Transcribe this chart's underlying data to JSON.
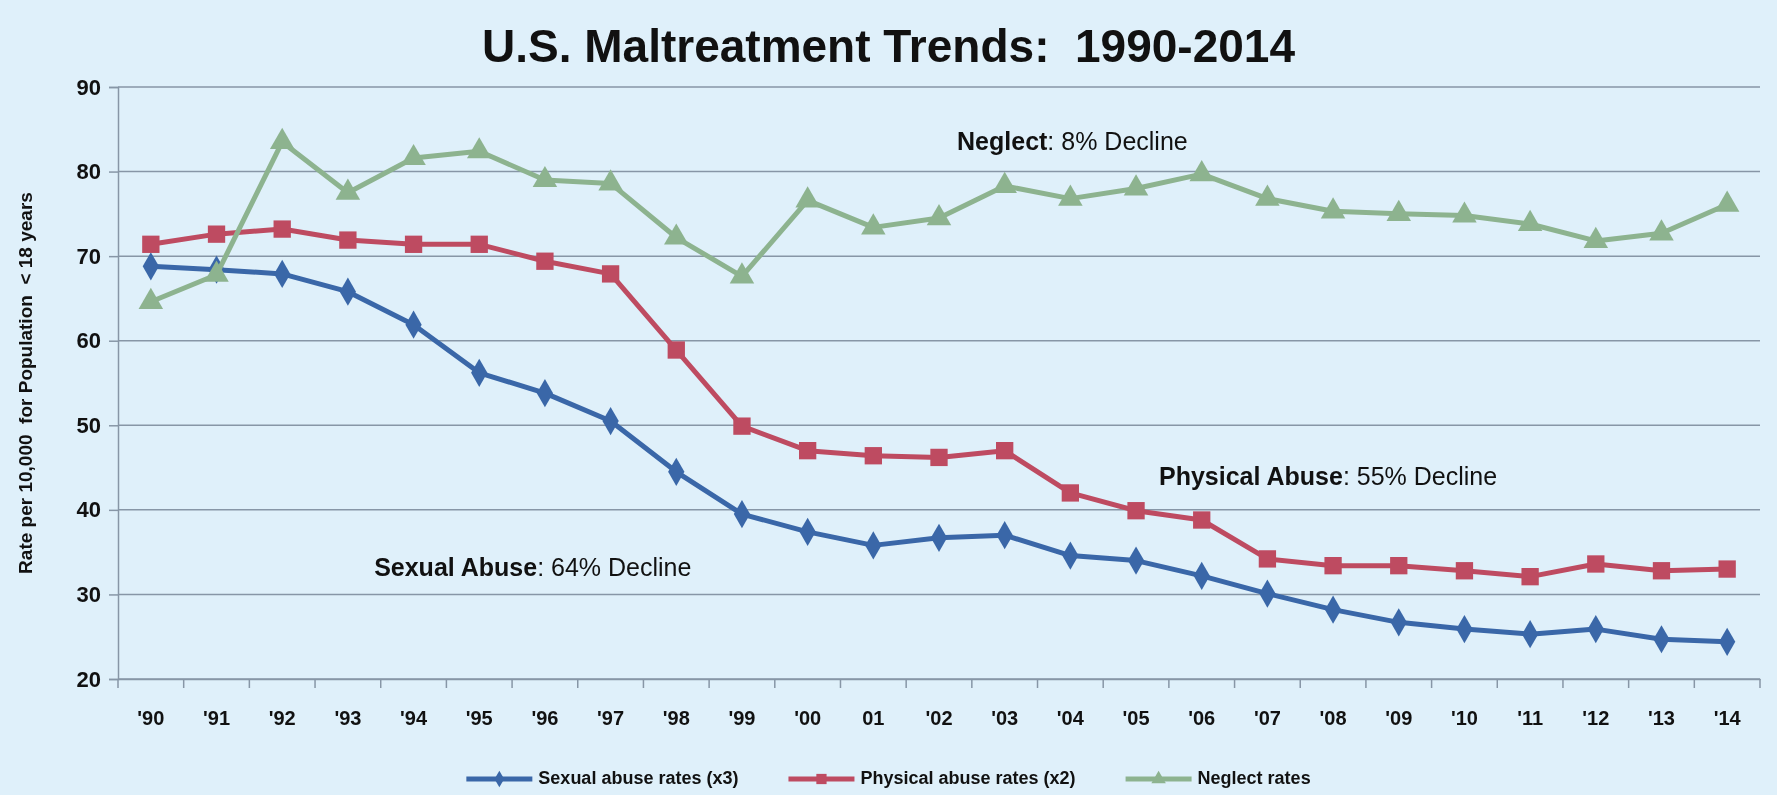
{
  "chart_data": {
    "type": "line",
    "title": "U.S. Maltreatment Trends:  1990-2014",
    "ylabel": "Rate per 10,000  for Population  < 18 years",
    "categories": [
      "'90",
      "'91",
      "'92",
      "'93",
      "'94",
      "'95",
      "'96",
      "'97",
      "'98",
      "'99",
      "'00",
      "01",
      "'02",
      "'03",
      "'04",
      "'05",
      "'06",
      "'07",
      "'08",
      "'09",
      "'10",
      "'11",
      "'12",
      "'13",
      "'14"
    ],
    "series": [
      {
        "name": "Sexual abuse rates (x3)",
        "color": "#3a67a8",
        "marker": "diamond",
        "values": [
          68.8,
          68.4,
          67.9,
          65.8,
          61.9,
          56.2,
          53.8,
          50.5,
          44.5,
          39.5,
          37.4,
          35.8,
          36.7,
          37.0,
          34.6,
          34.0,
          32.2,
          30.1,
          28.2,
          26.7,
          25.9,
          25.3,
          25.9,
          24.7,
          24.4
        ]
      },
      {
        "name": "Physical abuse rates (x2)",
        "color": "#be4b61",
        "marker": "square",
        "values": [
          71.4,
          72.6,
          73.2,
          71.9,
          71.4,
          71.4,
          69.4,
          67.9,
          58.9,
          49.9,
          47.0,
          46.4,
          46.2,
          47.0,
          42.0,
          39.9,
          38.8,
          34.2,
          33.4,
          33.4,
          32.8,
          32.1,
          33.6,
          32.8,
          33.0
        ]
      },
      {
        "name": "Neglect rates",
        "color": "#8db38f",
        "marker": "triangle",
        "values": [
          64.6,
          67.8,
          83.5,
          77.5,
          81.6,
          82.4,
          79.0,
          78.6,
          72.2,
          67.6,
          76.6,
          73.4,
          74.5,
          78.3,
          76.8,
          78.0,
          79.7,
          76.8,
          75.3,
          75.0,
          74.8,
          73.8,
          71.8,
          72.7,
          76.1
        ]
      }
    ],
    "ylim": [
      20,
      90
    ],
    "yticks": [
      20,
      30,
      40,
      50,
      60,
      70,
      80,
      90
    ],
    "grid": "y",
    "legend": "bottom",
    "line_style": "solid",
    "annotations": [
      "Neglect: 8% Decline",
      "Physical Abuse: 55% Decline",
      "Sexual Abuse: 64% Decline"
    ]
  }
}
